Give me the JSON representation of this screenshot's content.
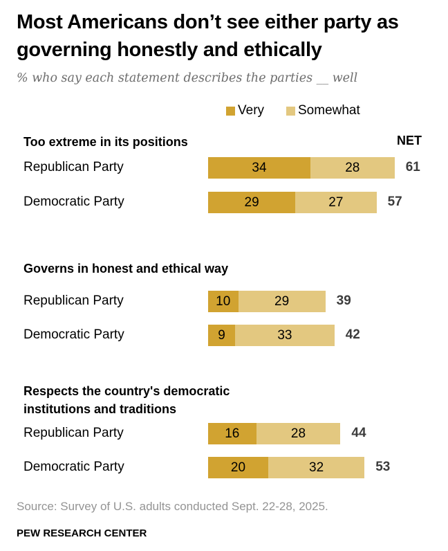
{
  "chart_data": {
    "type": "bar",
    "title": "Most Americans don’t see either party as governing honestly and ethically",
    "subtitle": "% who say each statement describes the parties __ well",
    "legend": [
      {
        "name": "Very",
        "color": "#D1A331"
      },
      {
        "name": "Somewhat",
        "color": "#E3C880"
      }
    ],
    "net_label": "NET",
    "groups": [
      {
        "heading": "Too extreme in its positions",
        "rows": [
          {
            "label": "Republican Party",
            "very": 34,
            "somewhat": 28,
            "net": 61
          },
          {
            "label": "Democratic Party",
            "very": 29,
            "somewhat": 27,
            "net": 57
          }
        ]
      },
      {
        "heading": "Governs in honest and ethical way",
        "rows": [
          {
            "label": "Republican Party",
            "very": 10,
            "somewhat": 29,
            "net": 39
          },
          {
            "label": "Democratic Party",
            "very": 9,
            "somewhat": 33,
            "net": 42
          }
        ]
      },
      {
        "heading": "Respects the country's democratic institutions and traditions",
        "rows": [
          {
            "label": "Republican Party",
            "very": 16,
            "somewhat": 28,
            "net": 44
          },
          {
            "label": "Democratic Party",
            "very": 20,
            "somewhat": 32,
            "net": 53
          }
        ]
      }
    ],
    "source": "Source: Survey of U.S. adults conducted Sept. 22-28, 2025.",
    "credit": "PEW RESEARCH CENTER"
  }
}
